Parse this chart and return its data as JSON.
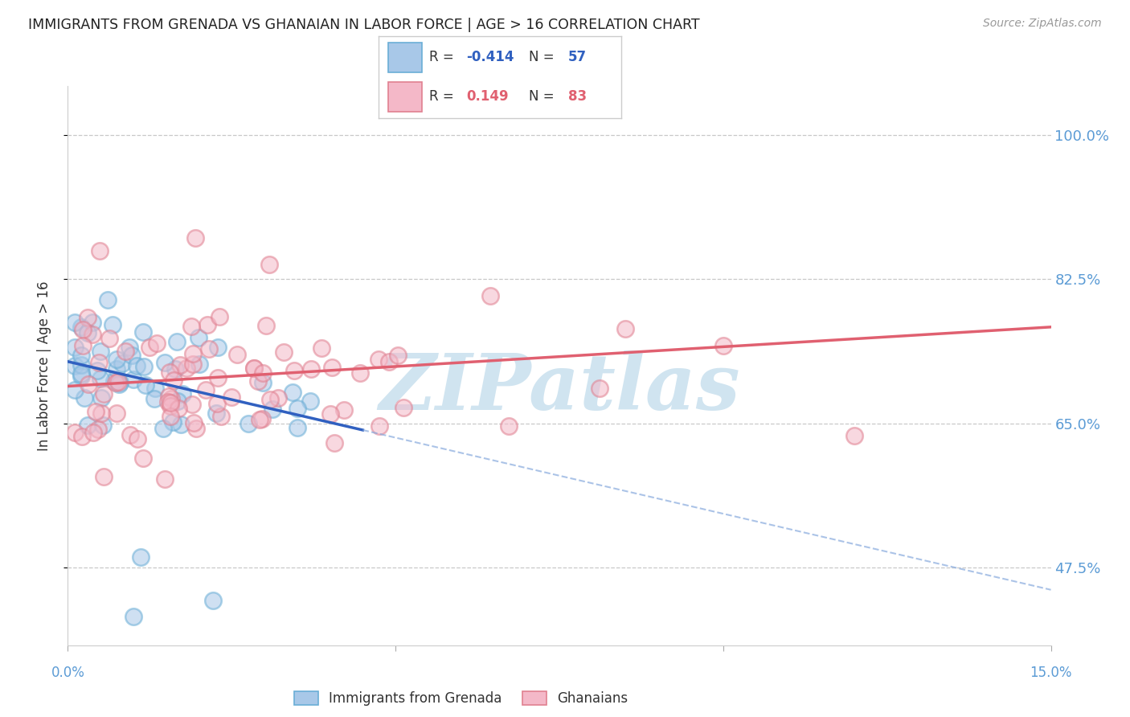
{
  "title": "IMMIGRANTS FROM GRENADA VS GHANAIAN IN LABOR FORCE | AGE > 16 CORRELATION CHART",
  "source": "Source: ZipAtlas.com",
  "ylabel": "In Labor Force | Age > 16",
  "yticks": [
    0.475,
    0.65,
    0.825,
    1.0
  ],
  "ytick_labels": [
    "47.5%",
    "65.0%",
    "82.5%",
    "100.0%"
  ],
  "xlim": [
    0.0,
    0.15
  ],
  "ylim": [
    0.38,
    1.06
  ],
  "series1_label": "Immigrants from Grenada",
  "series1_R": -0.414,
  "series1_N": 57,
  "series1_color": "#a8c8e8",
  "series1_edge": "#6aaed6",
  "series2_label": "Ghanaians",
  "series2_R": 0.149,
  "series2_N": 83,
  "series2_color": "#f4b8c8",
  "series2_edge": "#e08090",
  "trend_blue_solid_color": "#3060c0",
  "trend_blue_dash_color": "#88aadd",
  "trend_pink_color": "#e06070",
  "watermark": "ZIPatlas",
  "watermark_color": "#d0e4f0",
  "background_color": "#ffffff",
  "title_color": "#222222",
  "axis_tick_color": "#5b9bd5",
  "grid_color": "#bbbbbb",
  "legend_text_color": "#333333",
  "legend_value_color": "#3060c0",
  "legend_value2_color": "#e06070"
}
